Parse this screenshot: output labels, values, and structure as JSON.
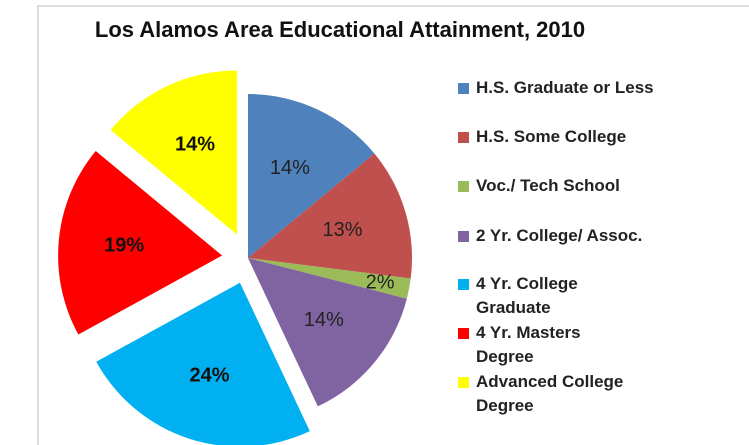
{
  "chart_data": {
    "type": "pie",
    "title": "Los Alamos Area Educational Attainment, 2010",
    "categories": [
      "H.S. Graduate or Less",
      "H.S. Some College",
      "Voc./ Tech School",
      "2 Yr. College/ Assoc.",
      "4 Yr. College Graduate",
      "4 Yr. Masters Degree",
      "Advanced College Degree"
    ],
    "values": [
      14,
      13,
      2,
      14,
      24,
      19,
      14
    ],
    "value_labels": [
      "14%",
      "13%",
      "2%",
      "14%",
      "24%",
      "19%",
      "14%"
    ],
    "colors": [
      "#4f81bd",
      "#c0504d",
      "#9bbb59",
      "#8064a2",
      "#00b0f0",
      "#ff0000",
      "#ffff00"
    ],
    "exploded": [
      false,
      false,
      false,
      false,
      true,
      true,
      true
    ],
    "legend": "right"
  }
}
